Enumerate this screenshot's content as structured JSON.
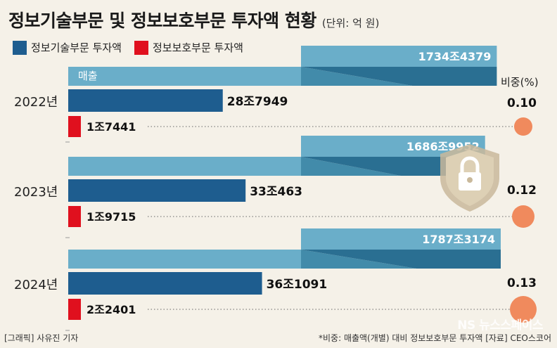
{
  "title": "정보기술부문 및 정보보호부문 투자액 현황",
  "unit": "(단위: 억 원)",
  "legend": {
    "it": "정보기술부문 투자액",
    "security": "정보보호부문 투자액"
  },
  "sales_label": "매출",
  "share_header": "비중(%)",
  "colors": {
    "sales": "#6aaec9",
    "sales_dark": "#2f7fa3",
    "it": "#1e5d8f",
    "security": "#e0101e",
    "share_dot": "#f08a5d",
    "background": "#f5f1e8"
  },
  "footer": {
    "left": "[그래픽] 사유진 기자",
    "right": "*비중: 매출액(개별) 대비 정보보호부문 투자액  [자료] CEO스코어",
    "watermark": "NS 뉴스스페이스"
  },
  "chart_data": {
    "type": "bar",
    "categories": [
      "2022년",
      "2023년",
      "2024년"
    ],
    "series": [
      {
        "name": "매출",
        "values": [
          17344379,
          16869952,
          17873174
        ],
        "labels": [
          "1734조4379",
          "1686조9952",
          "1787조3174"
        ]
      },
      {
        "name": "정보기술부문 투자액",
        "values": [
          287949,
          330463,
          361091
        ],
        "labels": [
          "28조7949",
          "33조463",
          "36조1091"
        ]
      },
      {
        "name": "정보보호부문 투자액",
        "values": [
          17441,
          19715,
          22401
        ],
        "labels": [
          "1조7441",
          "1조9715",
          "2조2401"
        ]
      }
    ],
    "share": {
      "name": "비중(%)",
      "values": [
        "0.10",
        "0.12",
        "0.13"
      ]
    }
  }
}
